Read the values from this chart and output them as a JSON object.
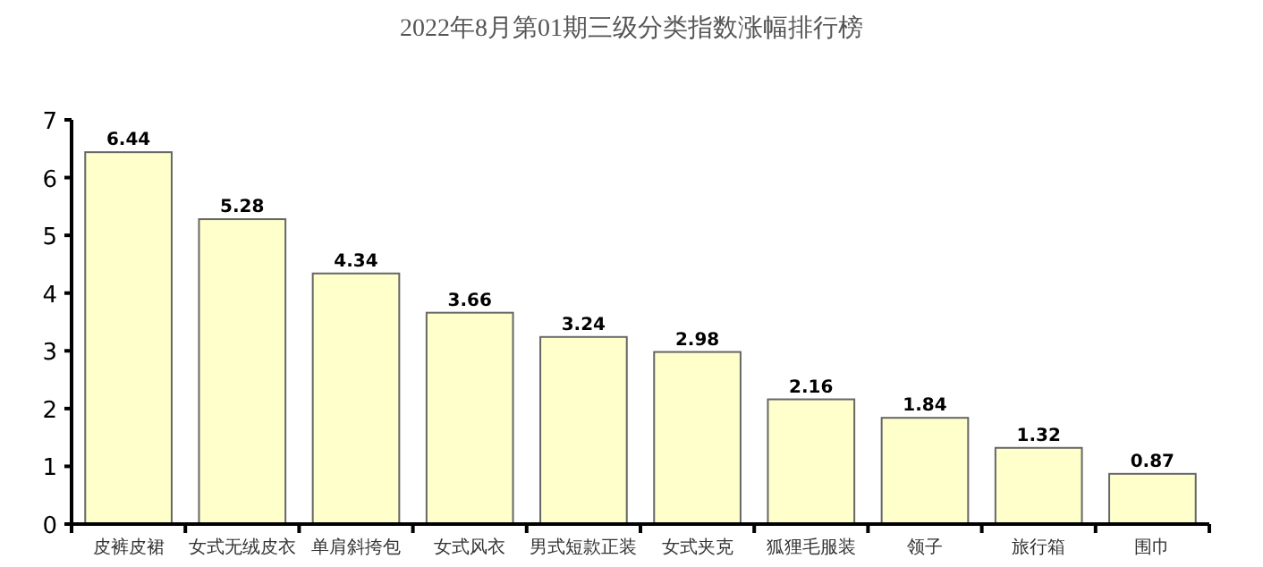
{
  "chart_data": {
    "type": "bar",
    "title": "2022年8月第01期三级分类指数涨幅排行榜",
    "categories": [
      "皮裤皮裙",
      "女式无绒皮衣",
      "单肩斜挎包",
      "女式风衣",
      "男式短款正装",
      "女式夹克",
      "狐狸毛服装",
      "领子",
      "旅行箱",
      "围巾"
    ],
    "values": [
      6.44,
      5.28,
      4.34,
      3.66,
      3.24,
      2.98,
      2.16,
      1.84,
      1.32,
      0.87
    ],
    "color": "#ffffcc",
    "ylim": [
      0,
      7
    ],
    "yticks": [
      0,
      1,
      2,
      3,
      4,
      5,
      6,
      7
    ],
    "grid": false,
    "data_labels": true
  }
}
